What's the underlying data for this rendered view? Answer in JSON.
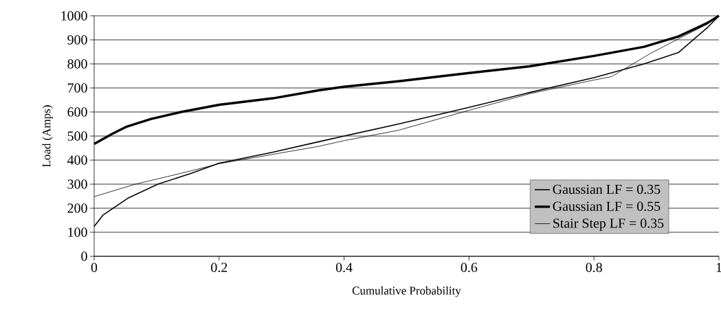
{
  "chart_data": {
    "type": "line",
    "xlabel": "Cumulative Probability",
    "ylabel": "Load (Amps)",
    "xlim": [
      0,
      1
    ],
    "xticks": [
      0,
      0.2,
      0.4,
      0.6,
      0.8,
      1
    ],
    "ylim": [
      0,
      1000
    ],
    "yticks": [
      0,
      100,
      200,
      300,
      400,
      500,
      600,
      700,
      800,
      900,
      1000
    ],
    "grid": "y",
    "legend": "right",
    "marker": "none",
    "line_style": "solid",
    "series": [
      {
        "name": "Gaussian LF = 0.35",
        "color": "#000000",
        "x": [
          0,
          0.014,
          0.055,
          0.102,
          0.153,
          0.2,
          0.286,
          0.359,
          0.4,
          0.487,
          0.6,
          0.697,
          0.8,
          0.88,
          0.935,
          0.982,
          1
        ],
        "values": [
          124,
          171,
          243,
          300,
          343,
          387,
          433,
          476,
          500,
          550,
          619,
          681,
          743,
          800,
          847,
          952,
          1000
        ]
      },
      {
        "name": "Gaussian LF = 0.55",
        "color": "#000000",
        "x": [
          0,
          0.029,
          0.051,
          0.091,
          0.139,
          0.2,
          0.286,
          0.359,
          0.4,
          0.487,
          0.6,
          0.697,
          0.8,
          0.88,
          0.935,
          0.982,
          1
        ],
        "values": [
          467,
          509,
          538,
          571,
          600,
          630,
          657,
          690,
          705,
          728,
          762,
          790,
          833,
          871,
          914,
          971,
          1000
        ]
      },
      {
        "name": "Stair Step LF = 0.35",
        "color": "#000000",
        "x": [
          0,
          0.066,
          0.139,
          0.2,
          0.286,
          0.359,
          0.4,
          0.487,
          0.6,
          0.697,
          0.8,
          0.828,
          0.89,
          0.935,
          0.982,
          1
        ],
        "values": [
          248,
          300,
          345,
          385,
          424,
          457,
          481,
          524,
          607,
          676,
          733,
          747,
          843,
          904,
          966,
          1000
        ]
      }
    ]
  }
}
